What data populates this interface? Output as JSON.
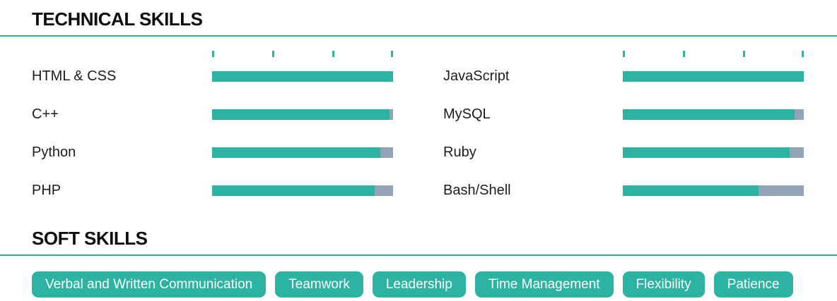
{
  "colors": {
    "accent": "#2db3a1",
    "track": "#91a4b6",
    "heading_text": "#0d0d0d",
    "tag_text": "#ffffff"
  },
  "technical_skills": {
    "title": "TECHNICAL SKILLS",
    "columns": [
      {
        "skills": [
          {
            "name": "HTML & CSS",
            "percent": 100
          },
          {
            "name": "C++",
            "percent": 98
          },
          {
            "name": "Python",
            "percent": 93
          },
          {
            "name": "PHP",
            "percent": 90
          }
        ]
      },
      {
        "skills": [
          {
            "name": "JavaScript",
            "percent": 100
          },
          {
            "name": "MySQL",
            "percent": 95
          },
          {
            "name": "Ruby",
            "percent": 92
          },
          {
            "name": "Bash/Shell",
            "percent": 75
          }
        ]
      }
    ]
  },
  "soft_skills": {
    "title": "SOFT SKILLS",
    "tags": [
      "Verbal and Written Communication",
      "Teamwork",
      "Leadership",
      "Time Management",
      "Flexibility",
      "Patience"
    ]
  },
  "chart_data": {
    "type": "bar",
    "orientation": "horizontal",
    "unit": "percent",
    "xlim": [
      0,
      100
    ],
    "grid": "ticks-at-0-33-67-100",
    "series": [
      {
        "name": "technical-skills-left",
        "categories": [
          "HTML & CSS",
          "C++",
          "Python",
          "PHP"
        ],
        "values": [
          100,
          98,
          93,
          90
        ]
      },
      {
        "name": "technical-skills-right",
        "categories": [
          "JavaScript",
          "MySQL",
          "Ruby",
          "Bash/Shell"
        ],
        "values": [
          100,
          95,
          92,
          75
        ]
      }
    ]
  }
}
